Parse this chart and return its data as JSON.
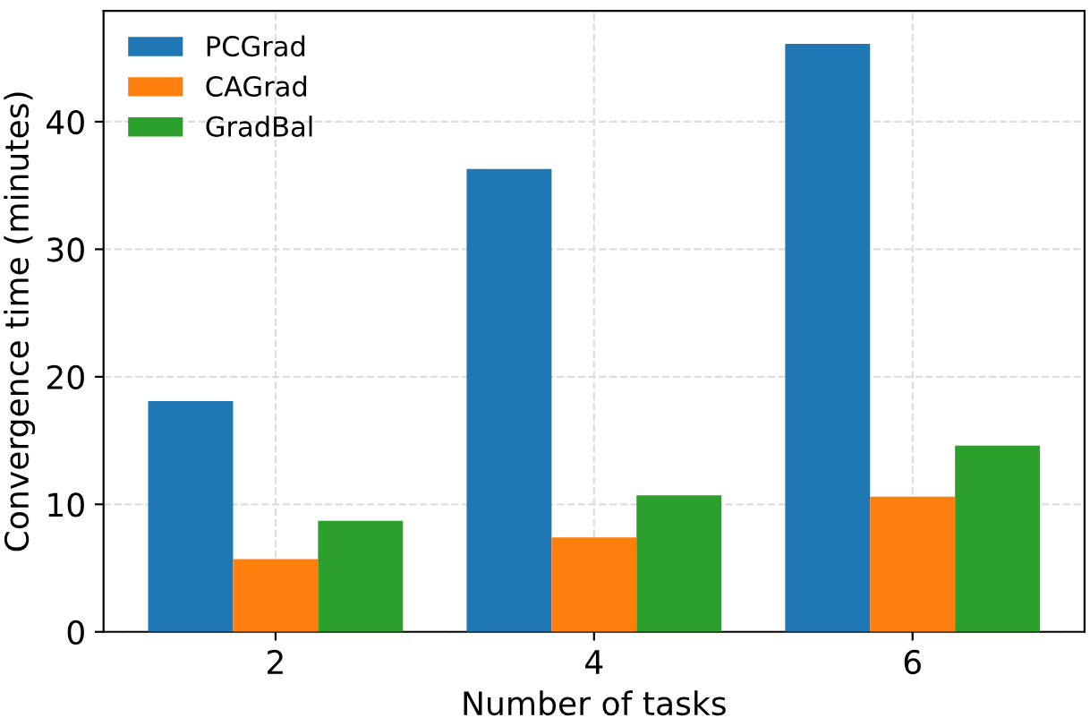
{
  "chart_data": {
    "type": "bar",
    "xlabel": "Number of tasks",
    "ylabel": "Convergence time (minutes)",
    "categories": [
      "2",
      "4",
      "6"
    ],
    "series": [
      {
        "name": "PCGrad",
        "color": "#1f77b4",
        "values": [
          18.1,
          36.3,
          46.1
        ]
      },
      {
        "name": "CAGrad",
        "color": "#ff7f0e",
        "values": [
          5.7,
          7.4,
          10.6
        ]
      },
      {
        "name": "GradBal",
        "color": "#2ca02c",
        "values": [
          8.7,
          10.7,
          14.6
        ]
      }
    ],
    "ylim": [
      0,
      48.7
    ],
    "yticks": [
      0,
      10,
      20,
      30,
      40
    ],
    "grid": true,
    "legend": "top left"
  }
}
